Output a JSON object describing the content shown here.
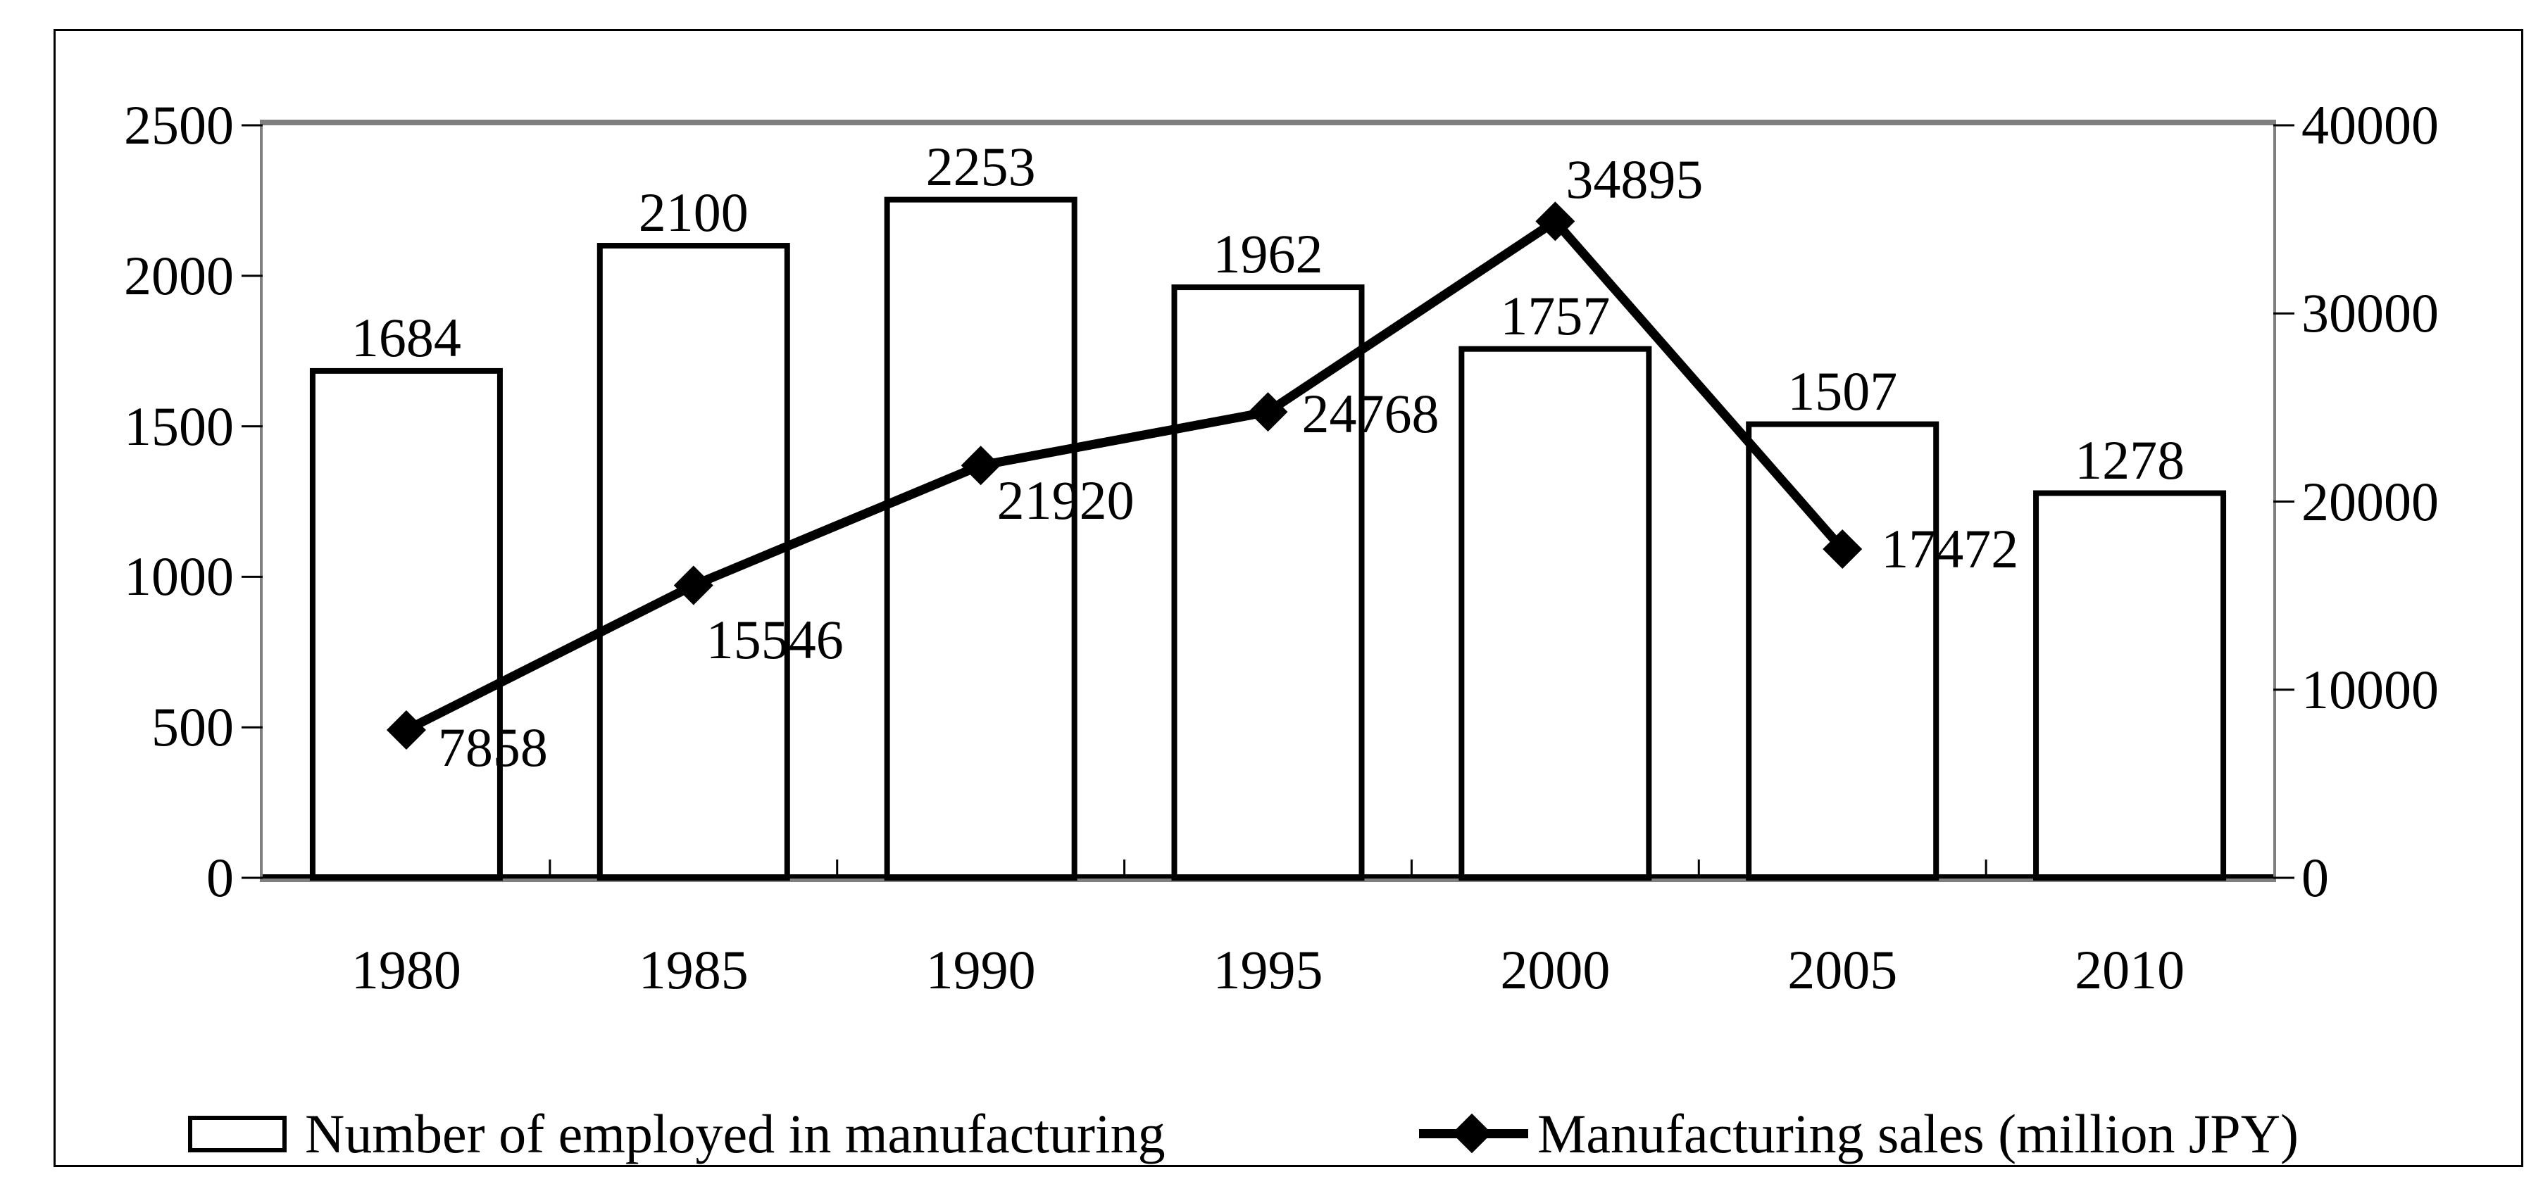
{
  "legend": {
    "bars_label": "Number of employed in manufacturing",
    "line_label": "Manufacturing sales (million JPY)"
  },
  "chart_data": {
    "type": "combo",
    "categories": [
      "1980",
      "1985",
      "1990",
      "1995",
      "2000",
      "2005",
      "2010"
    ],
    "series": [
      {
        "name": "Number of employed in manufacturing",
        "type": "bar",
        "axis": "left",
        "values": [
          1684,
          2100,
          2253,
          1962,
          1757,
          1507,
          1278
        ]
      },
      {
        "name": "Manufacturing sales (million JPY)",
        "type": "line",
        "axis": "right",
        "values": [
          7858,
          15546,
          21920,
          24768,
          34895,
          17472,
          null
        ]
      }
    ],
    "left_axis": {
      "min": 0,
      "max": 2500,
      "step": 500,
      "ticks": [
        "0",
        "500",
        "1000",
        "1500",
        "2000",
        "2500"
      ]
    },
    "right_axis": {
      "min": 0,
      "max": 40000,
      "step": 10000,
      "ticks": [
        "0",
        "10000",
        "20000",
        "30000",
        "40000"
      ]
    },
    "data_labels": true,
    "grid": false,
    "legend_position": "bottom",
    "colors": {
      "bar_fill": "#ffffff",
      "bar_border": "#000000",
      "line": "#000000",
      "plot_border": "#7f7f7f",
      "text": "#000000",
      "background": "#ffffff"
    }
  }
}
